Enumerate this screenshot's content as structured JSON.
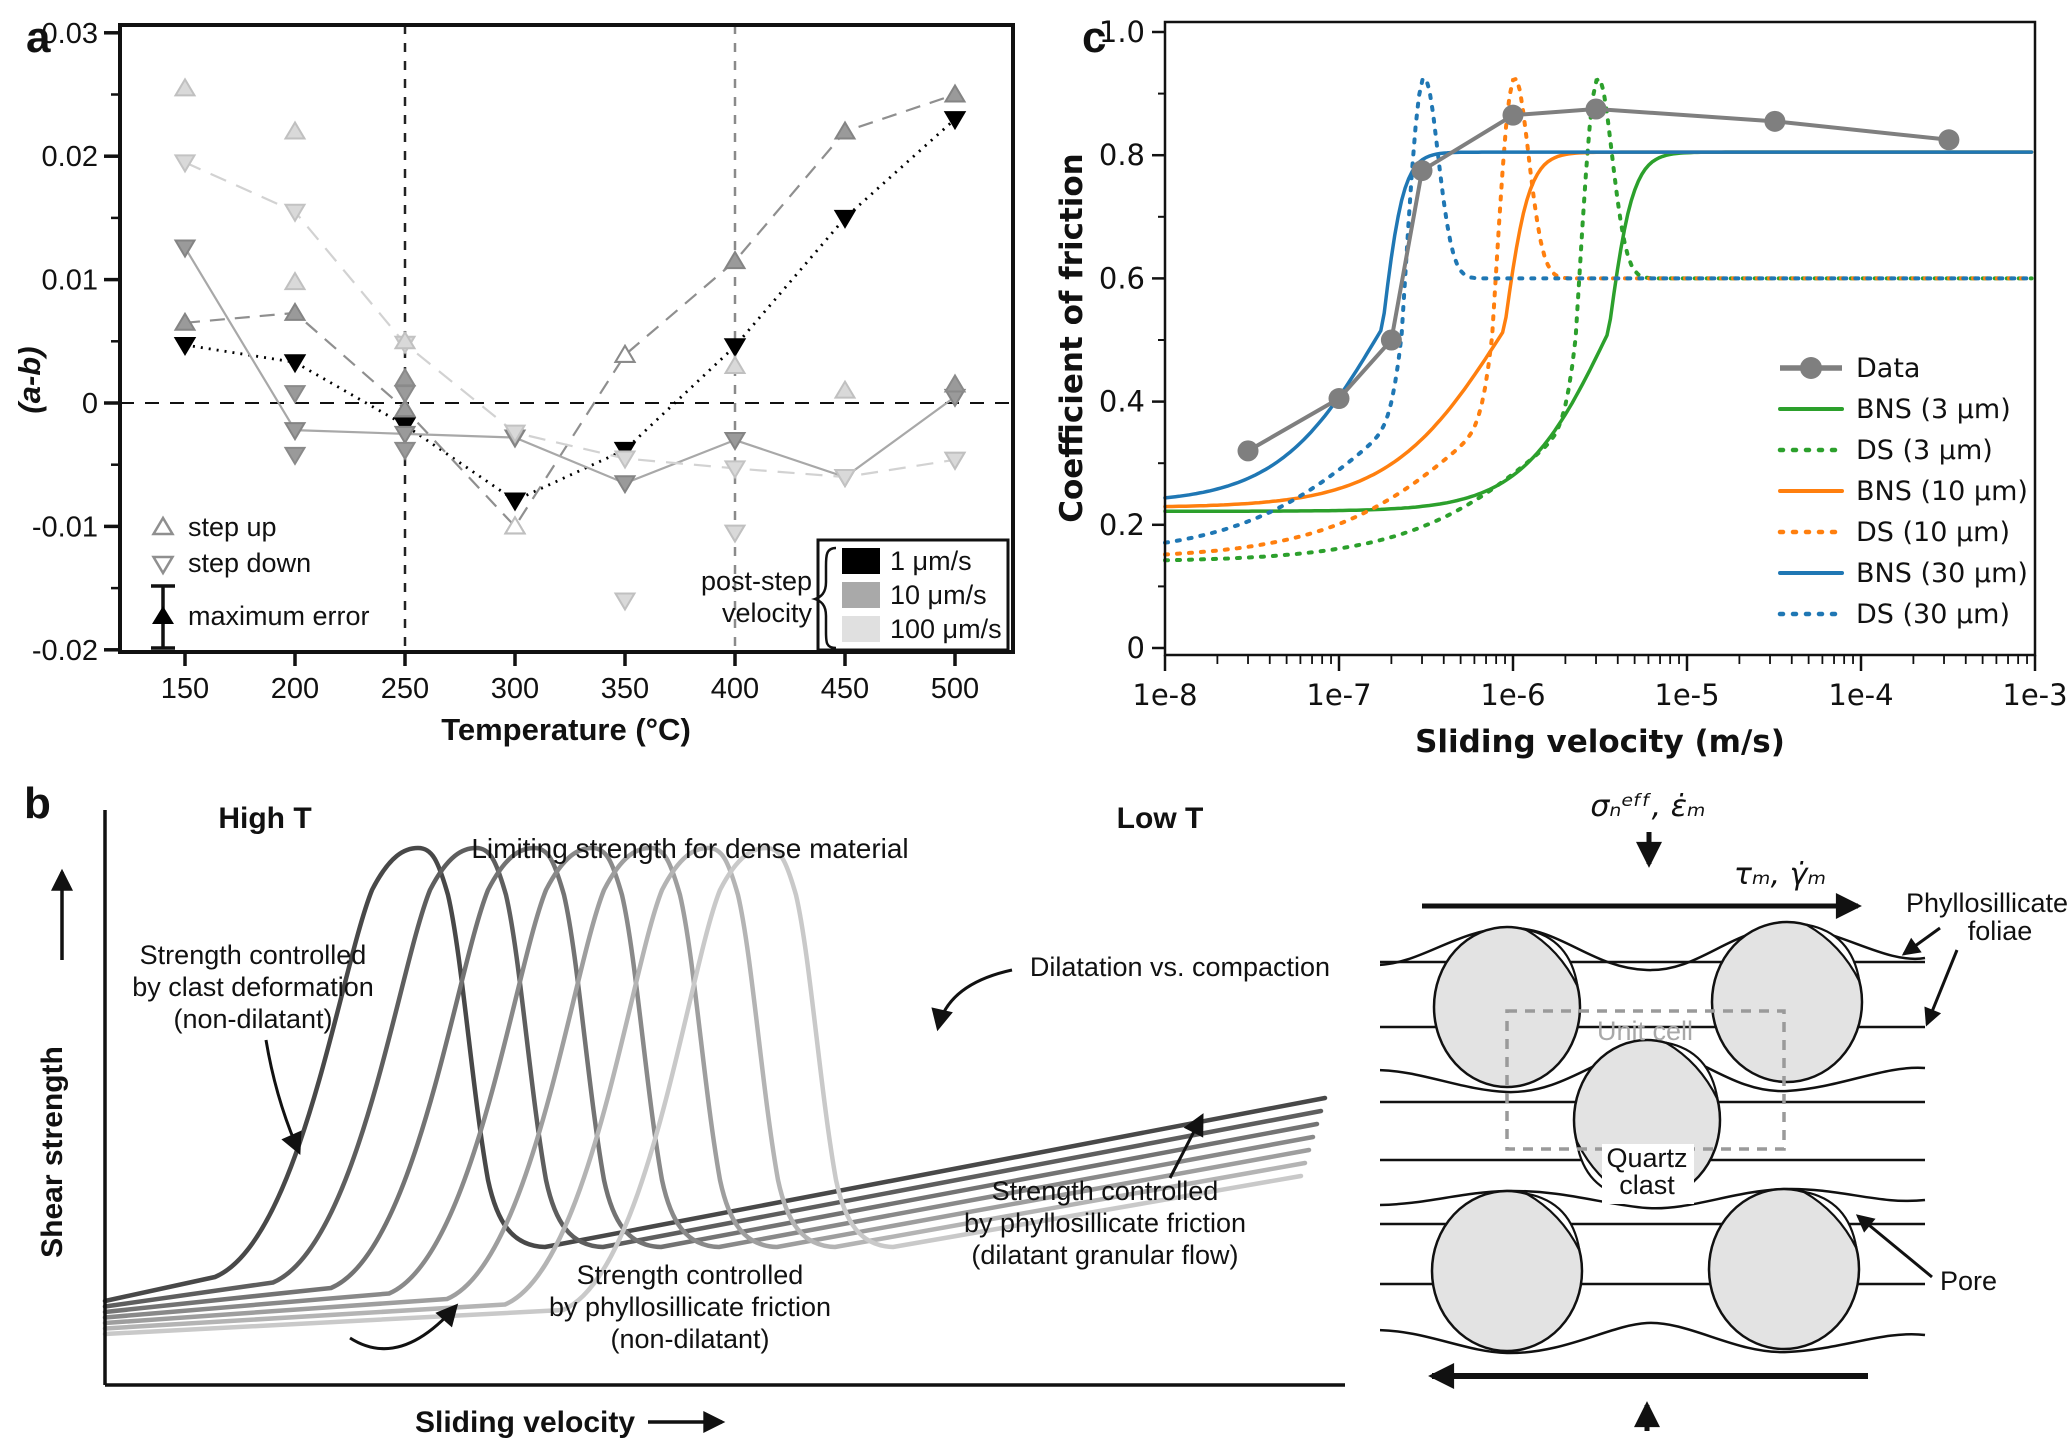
{
  "panel_a": {
    "label": "a",
    "ylabel": "(a-b)",
    "xlabel": "Temperature (°C)",
    "yticks": [
      {
        "v": 0.03,
        "t": "0.03"
      },
      {
        "v": 0.02,
        "t": "0.02"
      },
      {
        "v": 0.01,
        "t": "0.01"
      },
      {
        "v": 0,
        "t": "0"
      },
      {
        "v": -0.01,
        "t": "-0.01"
      },
      {
        "v": -0.02,
        "t": "-0.02"
      }
    ],
    "yticks_minor": [
      0.025,
      0.015,
      0.005,
      -0.005,
      -0.015
    ],
    "xticks": [
      {
        "v": 150,
        "t": "150"
      },
      {
        "v": 200,
        "t": "200"
      },
      {
        "v": 250,
        "t": "250"
      },
      {
        "v": 300,
        "t": "300"
      },
      {
        "v": 350,
        "t": "350"
      },
      {
        "v": 400,
        "t": "400"
      },
      {
        "v": 450,
        "t": "450"
      },
      {
        "v": 500,
        "t": "500"
      }
    ],
    "ref_vlines": [
      {
        "x": 250,
        "color": "#222222"
      },
      {
        "x": 400,
        "color": "#8a8a8a"
      }
    ],
    "legend": {
      "step_up": "step up",
      "step_down": "step down",
      "max_error": "maximum error"
    },
    "velocity_legend": {
      "line1": "post-step",
      "line2": "velocity",
      "items": [
        {
          "label": "1 μm/s",
          "color": "#000000"
        },
        {
          "label": "10 μm/s",
          "color": "#a9a9a9"
        },
        {
          "label": "100 μm/s",
          "color": "#e0e0e0"
        }
      ]
    }
  },
  "panel_c": {
    "label": "c",
    "ylabel": "Coefficient of friction",
    "xlabel": "Sliding velocity (m/s)",
    "yticks": [
      {
        "v": 0,
        "t": "0"
      },
      {
        "v": 0.2,
        "t": "0.2"
      },
      {
        "v": 0.4,
        "t": "0.4"
      },
      {
        "v": 0.6,
        "t": "0.6"
      },
      {
        "v": 0.8,
        "t": "0.8"
      },
      {
        "v": 1.0,
        "t": "1.0"
      }
    ],
    "xticks": [
      {
        "d": -8,
        "t": "1e-8"
      },
      {
        "d": -7,
        "t": "1e-7"
      },
      {
        "d": -6,
        "t": "1e-6"
      },
      {
        "d": -5,
        "t": "1e-5"
      },
      {
        "d": -4,
        "t": "1e-4"
      },
      {
        "d": -3,
        "t": "1e-3"
      }
    ]
  },
  "panel_b": {
    "label": "b",
    "high_t": "High T",
    "low_t": "Low T",
    "limiting": "Limiting strength for dense material",
    "ylabel": "Shear strength",
    "xlabel": "Sliding velocity",
    "ann_clast": [
      "Strength controlled",
      "by clast deformation",
      "(non-dilatant)"
    ],
    "ann_dilat": "Dilatation vs. compaction",
    "ann_phyllo_dilatant": [
      "Strength controlled",
      "by phyllosillicate friction",
      "(dilatant granular flow)"
    ],
    "ann_phyllo_nondilatant": [
      "Strength controlled",
      "by phyllosillicate friction",
      "(non-dilatant)"
    ]
  },
  "schematic": {
    "sigma_label": "σₙᵉᶠᶠ, ε̇ₘ",
    "tau_label": "τₘ, γ̇ₘ",
    "phyllo": [
      "Phyllosillicate",
      "foliae"
    ],
    "unit_cell": "Unit cell",
    "quartz": [
      "Quartz",
      "clast"
    ],
    "pore": "Pore"
  },
  "chart_data": [
    {
      "panel": "a",
      "type": "scatter",
      "title": "",
      "xlabel": "Temperature (°C)",
      "ylabel": "(a-b)",
      "xlim": [
        128,
        526
      ],
      "ylim": [
        -0.02,
        0.03
      ],
      "grid": false,
      "ref_hline": 0,
      "ref_vlines": [
        250,
        400
      ],
      "series": [
        {
          "name": "1 μm/s post-step (step down)",
          "color": "#000000",
          "dash": "2 6",
          "marker": "down",
          "mfill": "#000000",
          "mstroke": "#000000",
          "points": [
            [
              150,
              0.0047
            ],
            [
              200,
              0.0033
            ],
            [
              250,
              -0.0018
            ],
            [
              300,
              -0.0079
            ],
            [
              350,
              -0.0038
            ],
            [
              400,
              0.0046
            ],
            [
              450,
              0.015
            ],
            [
              500,
              0.023
            ]
          ]
        },
        {
          "name": "10 μm/s post-step (step up)",
          "color": "#8f8f8f",
          "dash": "15 10",
          "marker": "up",
          "mfill": "#9a9a9a",
          "mstroke": "#848484",
          "points": [
            [
              150,
              0.0065
            ],
            [
              200,
              0.0073
            ],
            [
              250,
              -0.0005
            ],
            [
              300,
              -0.01
            ],
            [
              350,
              0.0039
            ],
            [
              400,
              0.0115
            ],
            [
              450,
              0.022
            ],
            [
              500,
              0.025
            ]
          ]
        },
        {
          "name": "10 μm/s post-step (step down)",
          "color": "#a8a8a8",
          "dash": "",
          "marker": "down",
          "mfill": "#9a9a9a",
          "mstroke": "#848484",
          "points": [
            [
              150,
              0.0126
            ],
            [
              200,
              -0.0022
            ],
            [
              250,
              -0.0025
            ],
            [
              300,
              -0.0028
            ],
            [
              350,
              -0.0065
            ],
            [
              400,
              -0.003
            ],
            [
              450,
              -0.006
            ],
            [
              500,
              0.0005
            ]
          ]
        },
        {
          "name": "100 μm/s post-step",
          "color": "#d2d2d2",
          "dash": "17 11",
          "marker": "down",
          "mfill": "#d9d9d9",
          "mstroke": "#c3c3c3",
          "points": [
            [
              150,
              0.0195
            ],
            [
              200,
              0.0155
            ],
            [
              250,
              0.0048
            ],
            [
              300,
              -0.0024
            ],
            [
              350,
              -0.0045
            ],
            [
              400,
              -0.0053
            ],
            [
              450,
              -0.006
            ],
            [
              500,
              -0.0046
            ]
          ]
        }
      ],
      "extra_points": [
        {
          "x": 150,
          "y": 0.0255,
          "m": "up",
          "s": "light"
        },
        {
          "x": 200,
          "y": 0.022,
          "m": "up",
          "s": "light"
        },
        {
          "x": 200,
          "y": 0.0098,
          "m": "up",
          "s": "light"
        },
        {
          "x": 200,
          "y": 0.0008,
          "m": "down",
          "s": "gray"
        },
        {
          "x": 200,
          "y": -0.0042,
          "m": "down",
          "s": "gray"
        },
        {
          "x": 250,
          "y": 0.005,
          "m": "up",
          "s": "light"
        },
        {
          "x": 250,
          "y": 0.002,
          "m": "up",
          "s": "gray"
        },
        {
          "x": 250,
          "y": 0.0008,
          "m": "down",
          "s": "gray"
        },
        {
          "x": 250,
          "y": -0.0038,
          "m": "down",
          "s": "gray"
        },
        {
          "x": 300,
          "y": -0.01,
          "m": "up-open",
          "s": "light"
        },
        {
          "x": 350,
          "y": 0.0039,
          "m": "up-open",
          "s": "gray"
        },
        {
          "x": 350,
          "y": -0.016,
          "m": "down",
          "s": "light"
        },
        {
          "x": 400,
          "y": 0.003,
          "m": "up",
          "s": "light"
        },
        {
          "x": 400,
          "y": -0.0105,
          "m": "down",
          "s": "light"
        },
        {
          "x": 450,
          "y": 0.001,
          "m": "up",
          "s": "light"
        },
        {
          "x": 500,
          "y": 0.0015,
          "m": "up",
          "s": "gray"
        },
        {
          "x": 500,
          "y": -0.0046,
          "m": "down",
          "s": "light"
        }
      ]
    },
    {
      "panel": "c",
      "type": "line",
      "xscale": "log",
      "xlabel": "Sliding velocity (m/s)",
      "ylabel": "Coefficient of friction",
      "xlim": [
        1e-08,
        0.001
      ],
      "ylim": [
        0,
        1
      ],
      "legend_position": "lower right",
      "data_series": {
        "name": "Data",
        "color": "#7f7f7f",
        "points": [
          [
            3e-08,
            0.32
          ],
          [
            1e-07,
            0.405
          ],
          [
            2e-07,
            0.5
          ],
          [
            3e-07,
            0.775
          ],
          [
            1e-06,
            0.865
          ],
          [
            3e-06,
            0.875
          ],
          [
            3.2e-05,
            0.855
          ],
          [
            0.00032,
            0.825
          ]
        ]
      },
      "models": [
        {
          "name": "BNS (3 μm)",
          "color": "#2ca02c",
          "style": "solid",
          "kind": "bns",
          "base": 0.222,
          "plateau": 0.805,
          "logc": -5.45,
          "wlo": 0.25,
          "whi": 0.07
        },
        {
          "name": "DS (3 μm)",
          "color": "#2ca02c",
          "style": "dotted",
          "kind": "ds",
          "base": 0.14,
          "settle": 0.6,
          "logp": -5.52,
          "wlo": 0.45,
          "whi": 0.05,
          "amp": 0.36,
          "pw": 0.085
        },
        {
          "name": "BNS (10 μm)",
          "color": "#ff7f0e",
          "style": "solid",
          "kind": "bns",
          "base": 0.228,
          "plateau": 0.805,
          "logc": -6.05,
          "wlo": 0.33,
          "whi": 0.07
        },
        {
          "name": "DS (10 μm)",
          "color": "#ff7f0e",
          "style": "dotted",
          "kind": "ds",
          "base": 0.145,
          "settle": 0.6,
          "logp": -6.0,
          "wlo": 0.45,
          "whi": 0.05,
          "amp": 0.36,
          "pw": 0.085
        },
        {
          "name": "BNS (30 μm)",
          "color": "#1f77b4",
          "style": "solid",
          "kind": "bns",
          "base": 0.235,
          "plateau": 0.805,
          "logc": -6.75,
          "wlo": 0.3,
          "whi": 0.06
        },
        {
          "name": "DS (30 μm)",
          "color": "#1f77b4",
          "style": "dotted",
          "kind": "ds",
          "base": 0.15,
          "settle": 0.6,
          "logp": -6.52,
          "wlo": 0.45,
          "whi": 0.05,
          "amp": 0.36,
          "pw": 0.085
        }
      ]
    },
    {
      "panel": "b",
      "type": "schematic",
      "n_curves": 7,
      "gray_dark": "#484848",
      "gray_light": "#c9c9c9",
      "xlabel": "Sliding velocity",
      "ylabel": "Shear strength"
    }
  ]
}
